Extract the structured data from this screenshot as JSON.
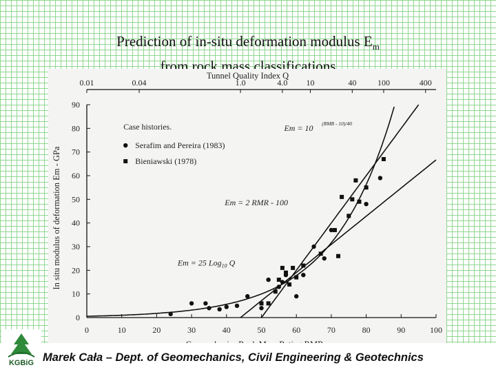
{
  "slide": {
    "title_line1": "Prediction of in-situ deformation modulus E",
    "title_subscript": "m",
    "title_line2": "from rock mass classifications",
    "footer": "Marek Cała – Dept. of Geomechanics, Civil Engineering & Geotechnics",
    "logo_text": "KGBiG"
  },
  "colors": {
    "grid": "#8fd68f",
    "ink": "#111111",
    "figure_bg": "#f4f4f2"
  },
  "chart_data": {
    "type": "scatter",
    "title": "",
    "xlabel": "Geomechanics Rock Mass Rating  RMR",
    "ylabel": "In situ modulus of deformation Em - GPa",
    "top_axis_label": "Tunnel Quality Index  Q",
    "xlim": [
      0,
      100
    ],
    "ylim": [
      0,
      90
    ],
    "x_ticks": [
      "0",
      "10",
      "20",
      "30",
      "40",
      "50",
      "60",
      "70",
      "80",
      "90",
      "100"
    ],
    "y_ticks": [
      "0",
      "10",
      "20",
      "30",
      "40",
      "50",
      "60",
      "70",
      "80",
      "90"
    ],
    "top_ticks": [
      {
        "label": "0.01",
        "rmr": 0
      },
      {
        "label": "0.04",
        "rmr": 15
      },
      {
        "label": "1.0",
        "rmr": 44
      },
      {
        "label": "4.0",
        "rmr": 56
      },
      {
        "label": "10",
        "rmr": 64
      },
      {
        "label": "40",
        "rmr": 76
      },
      {
        "label": "100",
        "rmr": 85
      },
      {
        "label": "400",
        "rmr": 97
      }
    ],
    "legend": {
      "placement": "top-left",
      "header": "Case histories.",
      "entries": [
        "Serafim and Pereira (1983)",
        "Bieniawski (1978)"
      ]
    },
    "series": [
      {
        "name": "Serafim and Pereira (1983)",
        "marker": "circle",
        "points": [
          [
            24,
            1.5
          ],
          [
            30,
            6
          ],
          [
            34,
            6
          ],
          [
            35,
            4
          ],
          [
            38,
            3.5
          ],
          [
            40,
            4.5
          ],
          [
            43,
            5
          ],
          [
            46,
            9
          ],
          [
            50,
            4
          ],
          [
            52,
            16
          ],
          [
            55,
            13
          ],
          [
            56,
            15
          ],
          [
            57,
            18
          ],
          [
            60,
            9
          ],
          [
            62,
            18
          ],
          [
            65,
            30
          ],
          [
            68,
            25
          ],
          [
            70,
            37
          ],
          [
            80,
            48
          ],
          [
            84,
            59
          ]
        ]
      },
      {
        "name": "Bieniawski (1978)",
        "marker": "square",
        "points": [
          [
            50,
            6
          ],
          [
            52,
            6
          ],
          [
            54,
            11
          ],
          [
            55,
            16
          ],
          [
            56,
            21
          ],
          [
            57,
            19
          ],
          [
            58,
            14
          ],
          [
            59,
            21
          ],
          [
            60,
            17
          ],
          [
            62,
            22
          ],
          [
            67,
            27
          ],
          [
            71,
            37
          ],
          [
            72,
            26
          ],
          [
            73,
            51
          ],
          [
            75,
            43
          ],
          [
            76,
            50
          ],
          [
            77,
            58
          ],
          [
            78,
            49
          ],
          [
            80,
            55
          ],
          [
            85,
            67
          ]
        ]
      }
    ],
    "curves": [
      {
        "name": "Em = 10^((RMR - 10)/40)",
        "label_main": "Em = 10",
        "label_exp": "(RMR - 10)/40",
        "kind": "exp"
      },
      {
        "name": "Em = 2 RMR - 100",
        "label_main": "Em = 2 RMR - 100",
        "kind": "linear"
      },
      {
        "name": "Em = 25 Log10 Q",
        "label_main": "Em = 25 Log",
        "label_sub": "10",
        "label_tail": " Q",
        "kind": "logq"
      }
    ]
  }
}
